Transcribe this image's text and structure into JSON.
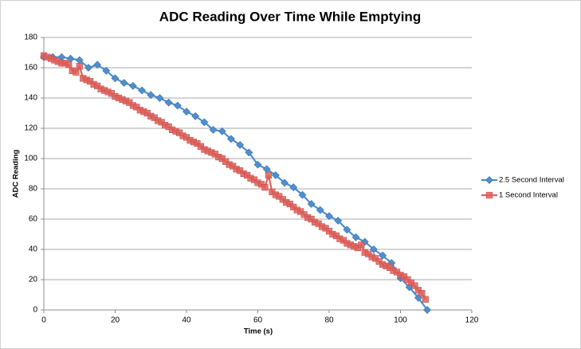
{
  "chart_data": {
    "type": "scatter-line",
    "title": "ADC Reading Over Time While Emptying",
    "x_label": "Time (s)",
    "y_label": "ADC Reading",
    "xlim": [
      0,
      120
    ],
    "xticks": [
      0,
      20,
      40,
      60,
      80,
      100,
      120
    ],
    "ylim": [
      0,
      180
    ],
    "yticks": [
      0,
      20,
      40,
      60,
      80,
      100,
      120,
      140,
      160,
      180
    ],
    "grid": true,
    "legend": "right",
    "series": [
      {
        "name": "2.5 Second Interval",
        "color": "#4f8fd0",
        "marker": "diamond",
        "x": [
          0,
          2.5,
          5,
          7.5,
          10,
          12.5,
          15,
          17.5,
          20,
          22.5,
          25,
          27.5,
          30,
          32.5,
          35,
          37.5,
          40,
          42.5,
          45,
          47.5,
          50,
          52.5,
          55,
          57.5,
          60,
          62.5,
          65,
          67.5,
          70,
          72.5,
          75,
          77.5,
          80,
          82.5,
          85,
          87.5,
          90,
          92.5,
          95,
          97.5,
          100,
          102.5,
          105,
          107.5
        ],
        "values": [
          167,
          167,
          167,
          166,
          165,
          160,
          162,
          158,
          153,
          150,
          148,
          145,
          142,
          140,
          137,
          135,
          131,
          128,
          124,
          119,
          118,
          113,
          109,
          104,
          96,
          93,
          89,
          84,
          81,
          76,
          70,
          66,
          62,
          59,
          53,
          48,
          45,
          40,
          36,
          31,
          21,
          15,
          8,
          0
        ]
      },
      {
        "name": "1 Second Interval",
        "color": "#e0605a",
        "marker": "square",
        "x": [
          0,
          1,
          2,
          3,
          4,
          5,
          6,
          7,
          8,
          9,
          10,
          11,
          12,
          13,
          14,
          15,
          16,
          17,
          18,
          19,
          20,
          21,
          22,
          23,
          24,
          25,
          26,
          27,
          28,
          29,
          30,
          31,
          32,
          33,
          34,
          35,
          36,
          37,
          38,
          39,
          40,
          41,
          42,
          43,
          44,
          45,
          46,
          47,
          48,
          49,
          50,
          51,
          52,
          53,
          54,
          55,
          56,
          57,
          58,
          59,
          60,
          61,
          62,
          63,
          64,
          65,
          66,
          67,
          68,
          69,
          70,
          71,
          72,
          73,
          74,
          75,
          76,
          77,
          78,
          79,
          80,
          81,
          82,
          83,
          84,
          85,
          86,
          87,
          88,
          89,
          90,
          91,
          92,
          93,
          94,
          95,
          96,
          97,
          98,
          99,
          100,
          101,
          102,
          103,
          104,
          105,
          106,
          107
        ],
        "values": [
          168,
          167,
          166,
          165,
          164,
          163,
          163,
          162,
          158,
          157,
          161,
          153,
          152,
          151,
          149,
          148,
          146,
          145,
          144,
          143,
          141,
          140,
          139,
          138,
          137,
          135,
          134,
          132,
          131,
          130,
          128,
          127,
          125,
          124,
          122,
          121,
          119,
          118,
          117,
          115,
          114,
          112,
          111,
          110,
          108,
          106,
          105,
          104,
          103,
          101,
          100,
          98,
          96,
          95,
          93,
          92,
          90,
          89,
          87,
          86,
          84,
          83,
          81,
          89,
          78,
          76,
          75,
          73,
          71,
          70,
          68,
          66,
          65,
          63,
          61,
          60,
          58,
          57,
          55,
          54,
          52,
          50,
          49,
          47,
          46,
          44,
          43,
          42,
          41,
          43,
          38,
          37,
          35,
          34,
          32,
          30,
          29,
          28,
          26,
          25,
          23,
          22,
          20,
          18,
          16,
          13,
          11,
          7
        ]
      }
    ]
  }
}
